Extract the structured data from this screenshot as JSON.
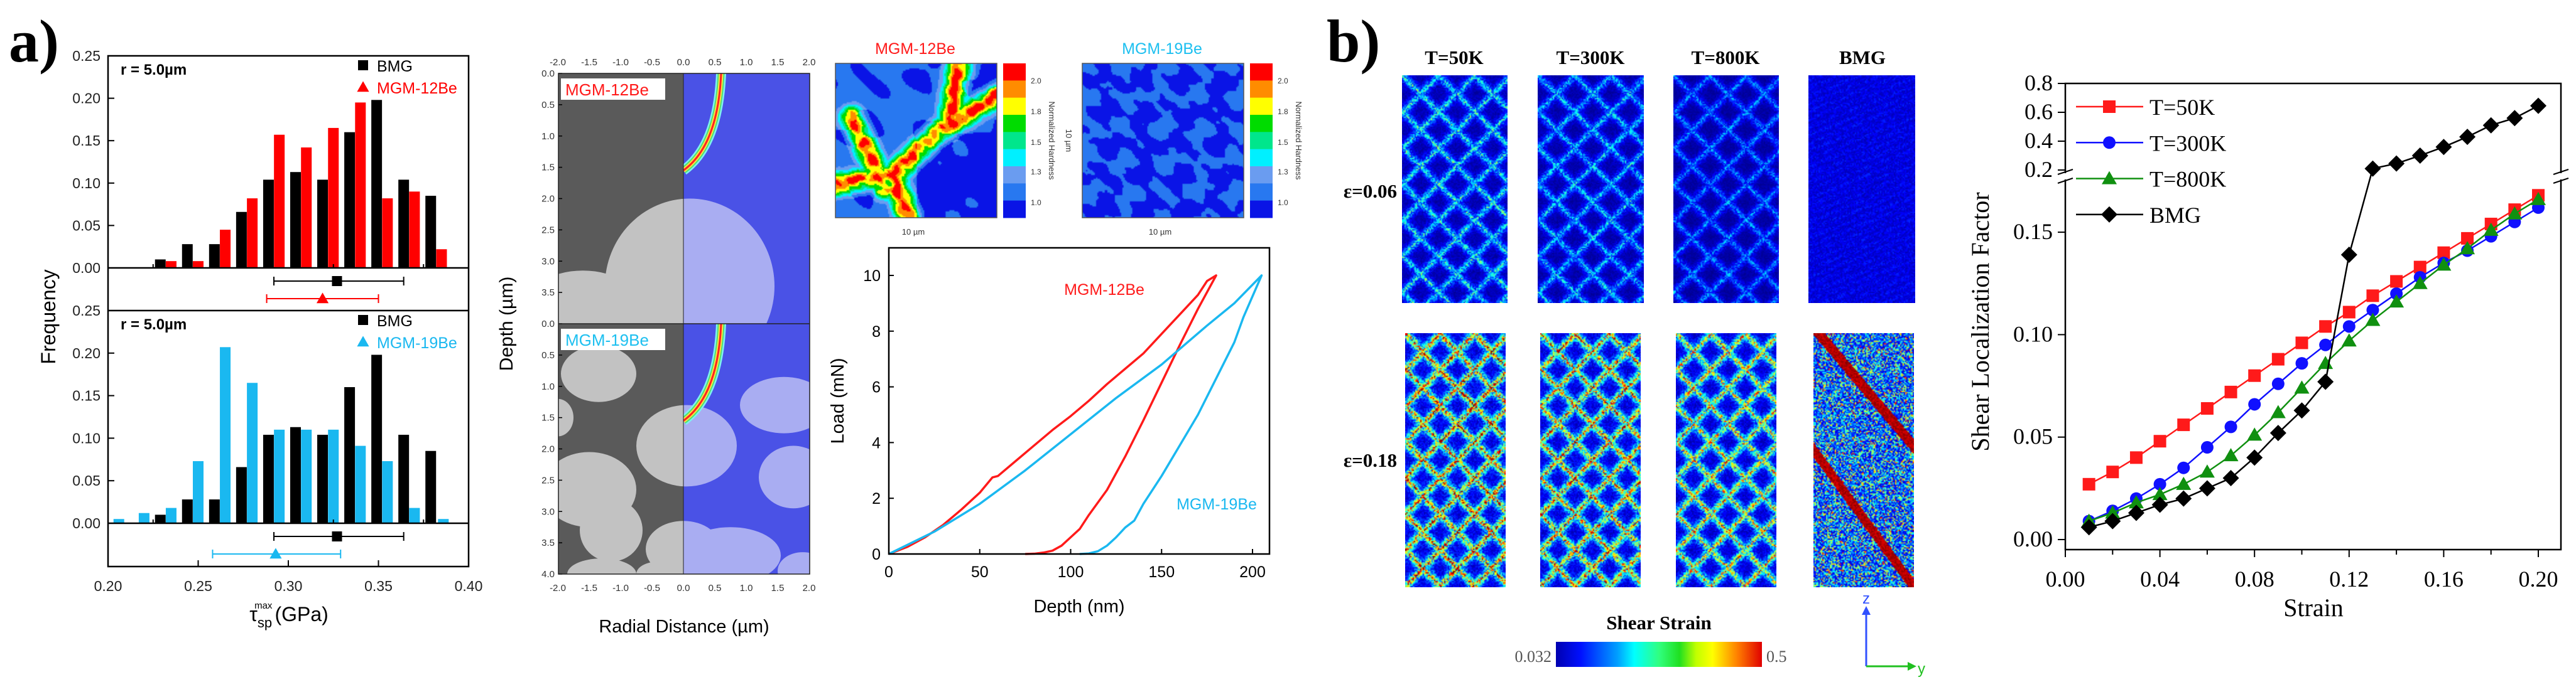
{
  "figure": {
    "panel_a_label": "a)",
    "panel_b_label": "b)"
  },
  "chart_data": [
    {
      "type": "bar",
      "title": "",
      "ylabel": "Frequency",
      "xlabel": {
        "symbol": "τ",
        "sub": "sp",
        "sup": "max",
        "unit": "(GPa)"
      },
      "xlim": [
        0.2,
        0.4
      ],
      "xticks": [
        "0.20",
        "0.25",
        "0.30",
        "0.35",
        "0.40"
      ],
      "yticks": [
        "0.00",
        "0.05",
        "0.10",
        "0.15",
        "0.20",
        "0.25"
      ],
      "panels": [
        {
          "annotation": "r = 5.0µm",
          "ylim": [
            0,
            0.25
          ],
          "legend_position": "top-right",
          "series": [
            {
              "name": "BMG",
              "color": "#000000",
              "marker": "square",
              "x": [
                0.229,
                0.244,
                0.259,
                0.274,
                0.289,
                0.304,
                0.319,
                0.334,
                0.349,
                0.364,
                0.379
              ],
              "values": [
                0.01,
                0.028,
                0.028,
                0.066,
                0.104,
                0.113,
                0.104,
                0.16,
                0.198,
                0.104,
                0.085
              ],
              "mean": 0.327,
              "range": [
                0.292,
                0.364
              ]
            },
            {
              "name": "MGM-12Be",
              "color": "#ff0000",
              "marker": "triangle",
              "x": [
                0.235,
                0.25,
                0.265,
                0.28,
                0.295,
                0.31,
                0.325,
                0.34,
                0.355,
                0.37,
                0.385
              ],
              "values": [
                0.008,
                0.008,
                0.045,
                0.082,
                0.157,
                0.142,
                0.165,
                0.195,
                0.082,
                0.09,
                0.022
              ],
              "mean": 0.319,
              "range": [
                0.288,
                0.35
              ]
            }
          ]
        },
        {
          "annotation": "r = 5.0µm",
          "ylim": [
            0,
            0.25
          ],
          "legend_position": "top-right",
          "series": [
            {
              "name": "BMG",
              "color": "#000000",
              "marker": "square",
              "x": [
                0.229,
                0.244,
                0.259,
                0.274,
                0.289,
                0.304,
                0.319,
                0.334,
                0.349,
                0.364,
                0.379
              ],
              "values": [
                0.01,
                0.028,
                0.028,
                0.066,
                0.104,
                0.113,
                0.104,
                0.16,
                0.198,
                0.104,
                0.085
              ],
              "mean": 0.327,
              "range": [
                0.292,
                0.364
              ]
            },
            {
              "name": "MGM-19Be",
              "color": "#1ab8f0",
              "marker": "triangle",
              "x": [
                0.206,
                0.22,
                0.235,
                0.25,
                0.265,
                0.28,
                0.295,
                0.31,
                0.325,
                0.34,
                0.355,
                0.37,
                0.386
              ],
              "values": [
                0.005,
                0.012,
                0.018,
                0.073,
                0.207,
                0.165,
                0.11,
                0.11,
                0.11,
                0.091,
                0.073,
                0.018,
                0.005
              ],
              "mean": 0.293,
              "range": [
                0.258,
                0.329
              ]
            }
          ]
        }
      ]
    },
    {
      "type": "line",
      "title": "",
      "xlabel": "Depth (nm)",
      "ylabel": "Load (mN)",
      "xlim": [
        0,
        210
      ],
      "ylim": [
        0,
        11
      ],
      "xticks": [
        "0",
        "50",
        "100",
        "150",
        "200"
      ],
      "yticks": [
        "0",
        "2",
        "4",
        "6",
        "8",
        "10"
      ],
      "series": [
        {
          "name": "MGM-12Be",
          "color": "#ff1a1a",
          "x": [
            0,
            10,
            20,
            30,
            40,
            50,
            57,
            60,
            70,
            80,
            90,
            100,
            110,
            120,
            130,
            140,
            150,
            160,
            170,
            175,
            180,
            170,
            160,
            150,
            140,
            130,
            120,
            110,
            105,
            100,
            95,
            90,
            85,
            80,
            75
          ],
          "y": [
            0,
            0.25,
            0.6,
            1.05,
            1.6,
            2.2,
            2.75,
            2.8,
            3.35,
            3.9,
            4.45,
            4.95,
            5.5,
            6.1,
            6.65,
            7.2,
            7.9,
            8.6,
            9.3,
            9.8,
            10,
            8.8,
            7.5,
            6.15,
            4.8,
            3.5,
            2.3,
            1.4,
            0.9,
            0.6,
            0.3,
            0.12,
            0.05,
            0.01,
            0
          ]
        },
        {
          "name": "MGM-19Be",
          "color": "#1ab8f0",
          "x": [
            0,
            25,
            50,
            75,
            100,
            125,
            150,
            175,
            190,
            205,
            195,
            190,
            180,
            170,
            160,
            150,
            140,
            135,
            130,
            125,
            120,
            115,
            110,
            105
          ],
          "y": [
            0,
            0.8,
            1.8,
            3.0,
            4.3,
            5.6,
            6.8,
            8.2,
            9.0,
            10,
            8.5,
            7.6,
            6.3,
            5.0,
            3.9,
            2.8,
            1.8,
            1.2,
            0.95,
            0.6,
            0.3,
            0.1,
            0.02,
            0
          ]
        }
      ],
      "annotations": [
        "MGM-12Be",
        "MGM-19Be"
      ]
    },
    {
      "type": "line",
      "title": "",
      "xlabel": "Strain",
      "ylabel": "Shear Localization Factor",
      "xlim": [
        0,
        0.21
      ],
      "ylim_lower": [
        0,
        0.176
      ],
      "ylim_upper": [
        0.2,
        0.8
      ],
      "axis_break": true,
      "xticks": [
        "0.00",
        "0.04",
        "0.08",
        "0.12",
        "0.16",
        "0.20"
      ],
      "yticks_lower": [
        "0.00",
        "0.05",
        "0.10",
        "0.15"
      ],
      "yticks_upper": [
        "0.2",
        "0.4",
        "0.6",
        "0.8"
      ],
      "legend_position": "top-left",
      "x": [
        0.01,
        0.02,
        0.03,
        0.04,
        0.05,
        0.06,
        0.07,
        0.08,
        0.09,
        0.1,
        0.11,
        0.12,
        0.13,
        0.14,
        0.15,
        0.16,
        0.17,
        0.18,
        0.19,
        0.2
      ],
      "series": [
        {
          "name": "T=50K",
          "color": "#ff1a1a",
          "marker": "square",
          "values": [
            0.027,
            0.033,
            0.04,
            0.048,
            0.056,
            0.064,
            0.072,
            0.08,
            0.088,
            0.096,
            0.104,
            0.111,
            0.119,
            0.126,
            0.133,
            0.14,
            0.147,
            0.154,
            0.161,
            0.168
          ]
        },
        {
          "name": "T=300K",
          "color": "#1010ff",
          "marker": "circle",
          "values": [
            0.009,
            0.014,
            0.02,
            0.027,
            0.035,
            0.045,
            0.055,
            0.066,
            0.076,
            0.086,
            0.095,
            0.104,
            0.112,
            0.12,
            0.128,
            0.135,
            0.141,
            0.148,
            0.155,
            0.162
          ]
        },
        {
          "name": "T=800K",
          "color": "#109010",
          "marker": "triangle",
          "values": [
            0.009,
            0.013,
            0.018,
            0.022,
            0.027,
            0.033,
            0.041,
            0.051,
            0.062,
            0.074,
            0.086,
            0.097,
            0.107,
            0.116,
            0.125,
            0.134,
            0.142,
            0.151,
            0.159,
            0.166
          ]
        },
        {
          "name": "BMG",
          "color": "#000000",
          "marker": "diamond",
          "values": [
            0.006,
            0.009,
            0.013,
            0.017,
            0.02,
            0.025,
            0.03,
            0.04,
            0.052,
            0.063,
            0.077,
            0.139,
            0.21,
            0.245,
            0.3,
            0.36,
            0.43,
            0.51,
            0.56,
            0.645
          ]
        }
      ]
    }
  ],
  "micrograph": {
    "panels": [
      {
        "label": "MGM-12Be",
        "label_color": "#ff1a1a"
      },
      {
        "label": "MGM-19Be",
        "label_color": "#1ec0f0"
      }
    ],
    "xlabel": "Radial Distance (µm)",
    "ylabel": "Depth (µm)",
    "xticks": [
      "-2.0",
      "-1.5",
      "-1.0",
      "-0.5",
      "0.0",
      "0.5",
      "1.0",
      "1.5",
      "2.0"
    ],
    "yticks_top": [
      "0.0",
      "0.5",
      "1.0",
      "1.5",
      "2.0",
      "2.5",
      "3.0",
      "3.5"
    ],
    "yticks_bottom": [
      "0.0",
      "0.5",
      "1.0",
      "1.5",
      "2.0",
      "2.5",
      "3.0",
      "3.5",
      "4.0"
    ]
  },
  "hardness_maps": {
    "maps": [
      {
        "title": "MGM-12Be",
        "title_color": "#ff1a1a",
        "scale_x": "10 µm",
        "scale_y": "10 µm"
      },
      {
        "title": "MGM-19Be",
        "title_color": "#1ec0f0",
        "scale_x": "10 µm"
      }
    ],
    "colorbar_label": "Normalized Hardness",
    "colorbar_ticks": [
      "2.0",
      "1.8",
      "1.5",
      "1.3",
      "1.0"
    ],
    "colorbar_colors": [
      "#ff0000",
      "#ff8c00",
      "#ffff00",
      "#00dc00",
      "#00e68c",
      "#00f0ff",
      "#6a9cf0",
      "#2878f0",
      "#0a14e6"
    ]
  },
  "strain_maps": {
    "columns": [
      "T=50K",
      "T=300K",
      "T=800K",
      "BMG"
    ],
    "rows": [
      "ε=0.06",
      "ε=0.18"
    ],
    "colorbar_title": "Shear Strain",
    "colorbar_min": "0.032",
    "colorbar_max": "0.5",
    "axis_z": "z",
    "axis_y": "y"
  }
}
